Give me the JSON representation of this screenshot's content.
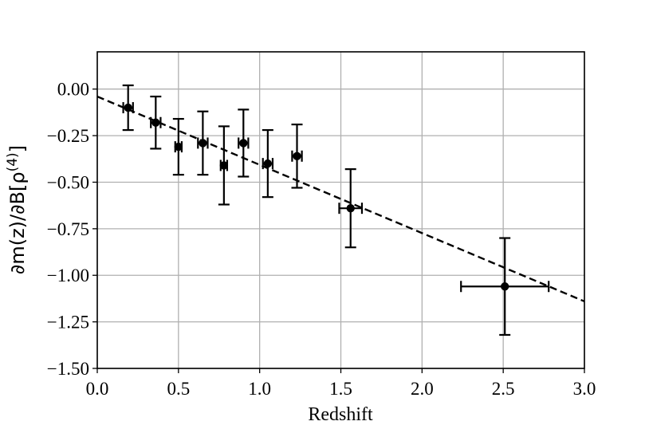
{
  "chart_data": {
    "type": "scatter",
    "title": "",
    "xlabel": "Redshift",
    "ylabel": {
      "main": "∂m(z)/∂B[ρ",
      "sup": "(4)",
      "close": "]"
    },
    "xlim": [
      0.0,
      3.0
    ],
    "ylim": [
      -1.5,
      0.2
    ],
    "grid": true,
    "x_ticks": [
      0.0,
      0.5,
      1.0,
      1.5,
      2.0,
      2.5,
      3.0
    ],
    "x_tick_labels": [
      "0.0",
      "0.5",
      "1.0",
      "1.5",
      "2.0",
      "2.5",
      "3.0"
    ],
    "y_ticks": [
      0.0,
      -0.25,
      -0.5,
      -0.75,
      -1.0,
      -1.25,
      -1.5
    ],
    "y_tick_labels": [
      "0.00",
      "−0.25",
      "−0.50",
      "−0.75",
      "−1.00",
      "−1.25",
      "−1.50"
    ],
    "points": [
      {
        "x": 0.19,
        "y": -0.1,
        "xerr": 0.03,
        "yerr": 0.12
      },
      {
        "x": 0.36,
        "y": -0.18,
        "xerr": 0.03,
        "yerr": 0.14
      },
      {
        "x": 0.5,
        "y": -0.31,
        "xerr": 0.02,
        "yerr": 0.15
      },
      {
        "x": 0.65,
        "y": -0.29,
        "xerr": 0.03,
        "yerr": 0.17
      },
      {
        "x": 0.78,
        "y": -0.41,
        "xerr": 0.02,
        "yerr": 0.21
      },
      {
        "x": 0.9,
        "y": -0.29,
        "xerr": 0.03,
        "yerr": 0.18
      },
      {
        "x": 1.05,
        "y": -0.4,
        "xerr": 0.03,
        "yerr": 0.18
      },
      {
        "x": 1.23,
        "y": -0.36,
        "xerr": 0.03,
        "yerr": 0.17
      },
      {
        "x": 1.56,
        "y": -0.64,
        "xerr": 0.07,
        "yerr": 0.21
      },
      {
        "x": 2.51,
        "y": -1.06,
        "xerr": 0.27,
        "yerr": 0.26
      }
    ],
    "fit_line": {
      "style": "dashed",
      "x": [
        0.0,
        3.0
      ],
      "y": [
        -0.04,
        -1.14
      ]
    },
    "colors": {
      "marker": "#000000",
      "fit": "#000000",
      "grid": "#b0b0b0"
    }
  }
}
